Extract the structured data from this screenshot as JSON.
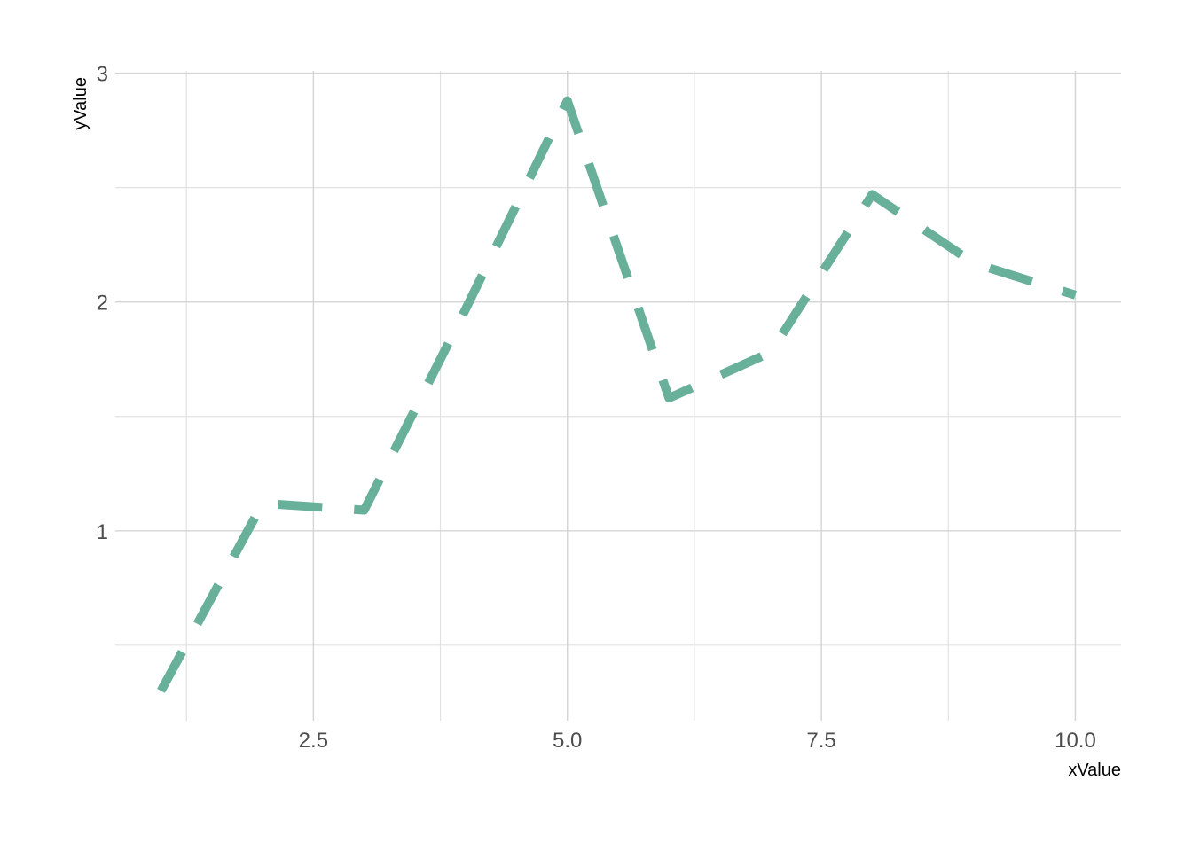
{
  "chart_data": {
    "type": "line",
    "title": "",
    "xlabel": "xValue",
    "ylabel": "yValue",
    "x": [
      1,
      2,
      3,
      4,
      5,
      6,
      7,
      8,
      9,
      10
    ],
    "series": [
      {
        "values": [
          0.3,
          1.12,
          1.09,
          1.97,
          2.88,
          1.58,
          1.78,
          2.47,
          2.17,
          2.03
        ]
      }
    ],
    "xlim": [
      0.55,
      10.45
    ],
    "ylim": [
      0.17,
      3.01
    ],
    "xticks": [
      2.5,
      5.0,
      7.5,
      10.0
    ],
    "xtick_labels": [
      "2.5",
      "5.0",
      "7.5",
      "10.0"
    ],
    "yticks": [
      1,
      2,
      3
    ],
    "ytick_labels": [
      "1",
      "2",
      "3"
    ],
    "x_minor_ticks": [
      1.25,
      3.75,
      6.25,
      8.75
    ],
    "y_minor_ticks": [
      0.5,
      1.5,
      2.5
    ],
    "grid": true,
    "line_style": "dashed",
    "colors": {
      "line": "#69b09a",
      "grid": "#d4d4d4",
      "background": "#ffffff"
    }
  }
}
